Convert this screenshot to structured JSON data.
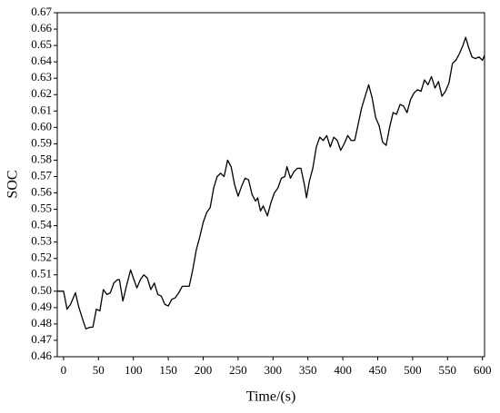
{
  "chart_data": {
    "type": "line",
    "x_label": "Time/(s)",
    "y_label": "SOC",
    "xlim": [
      -9,
      603
    ],
    "ylim": [
      0.46,
      0.67
    ],
    "xticks": [
      0,
      50,
      100,
      150,
      200,
      250,
      300,
      350,
      400,
      450,
      500,
      550,
      600
    ],
    "yticks": [
      0.46,
      0.47,
      0.48,
      0.49,
      {
        "value": 0.5,
        "label": "0.50"
      },
      0.51,
      0.52,
      0.53,
      0.54,
      0.55,
      0.56,
      0.57,
      0.58,
      0.59,
      {
        "value": 0.6,
        "label": "0.60"
      },
      0.61,
      0.62,
      0.63,
      0.64,
      0.65,
      0.66,
      0.67
    ],
    "color": "#000000",
    "x": [
      -9,
      0,
      5,
      10,
      17,
      22,
      28,
      32,
      38,
      42,
      47,
      52,
      57,
      62,
      67,
      72,
      77,
      80,
      85,
      90,
      96,
      100,
      105,
      110,
      115,
      120,
      125,
      130,
      135,
      140,
      145,
      150,
      155,
      160,
      165,
      170,
      175,
      180,
      185,
      190,
      195,
      200,
      205,
      210,
      215,
      220,
      225,
      230,
      235,
      240,
      245,
      250,
      255,
      260,
      265,
      270,
      275,
      278,
      282,
      286,
      292,
      297,
      302,
      307,
      312,
      317,
      320,
      325,
      330,
      335,
      340,
      345,
      348,
      352,
      357,
      362,
      367,
      372,
      377,
      382,
      387,
      392,
      397,
      402,
      407,
      412,
      417,
      422,
      427,
      432,
      437,
      442,
      447,
      452,
      457,
      462,
      467,
      472,
      477,
      482,
      487,
      492,
      497,
      502,
      507,
      512,
      517,
      522,
      527,
      532,
      537,
      542,
      547,
      552,
      557,
      562,
      567,
      572,
      576,
      580,
      585,
      590,
      595,
      600,
      603
    ],
    "values": [
      0.5,
      0.5,
      0.489,
      0.492,
      0.499,
      0.49,
      0.482,
      0.477,
      0.478,
      0.478,
      0.489,
      0.488,
      0.501,
      0.498,
      0.499,
      0.505,
      0.507,
      0.507,
      0.494,
      0.503,
      0.513,
      0.508,
      0.502,
      0.507,
      0.51,
      0.508,
      0.501,
      0.505,
      0.498,
      0.497,
      0.492,
      0.491,
      0.495,
      0.496,
      0.499,
      0.503,
      0.503,
      0.503,
      0.513,
      0.525,
      0.533,
      0.542,
      0.548,
      0.551,
      0.563,
      0.57,
      0.572,
      0.57,
      0.58,
      0.576,
      0.565,
      0.558,
      0.564,
      0.569,
      0.568,
      0.559,
      0.555,
      0.557,
      0.549,
      0.552,
      0.546,
      0.554,
      0.56,
      0.563,
      0.569,
      0.57,
      0.576,
      0.569,
      0.573,
      0.575,
      0.575,
      0.565,
      0.557,
      0.567,
      0.575,
      0.588,
      0.594,
      0.592,
      0.595,
      0.588,
      0.594,
      0.592,
      0.586,
      0.59,
      0.595,
      0.592,
      0.592,
      0.602,
      0.612,
      0.619,
      0.626,
      0.618,
      0.606,
      0.601,
      0.591,
      0.589,
      0.6,
      0.609,
      0.608,
      0.614,
      0.613,
      0.609,
      0.617,
      0.621,
      0.623,
      0.622,
      0.629,
      0.626,
      0.631,
      0.624,
      0.628,
      0.619,
      0.622,
      0.627,
      0.639,
      0.641,
      0.645,
      0.65,
      0.655,
      0.649,
      0.643,
      0.642,
      0.643,
      0.641,
      0.644
    ]
  }
}
